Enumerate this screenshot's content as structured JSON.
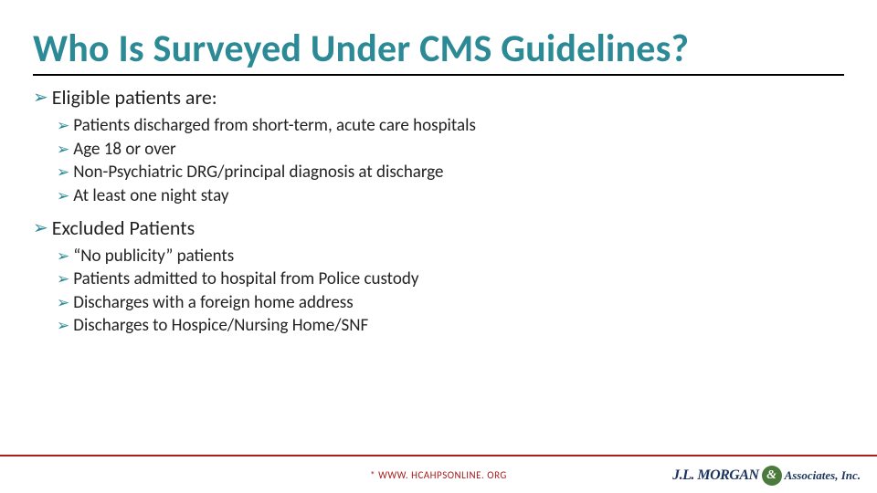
{
  "title": "Who Is Surveyed Under CMS Guidelines?",
  "sections": [
    {
      "heading": "Eligible patients are:",
      "items": [
        "Patients discharged from short-term, acute care hospitals",
        "Age 18 or over",
        "Non-Psychiatric DRG/principal diagnosis at discharge",
        "At least one night stay"
      ]
    },
    {
      "heading": "Excluded Patients",
      "items": [
        "“No publicity” patients",
        "Patients admitted to hospital from Police custody",
        "Discharges with a foreign home address",
        "Discharges to Hospice/Nursing Home/SNF"
      ]
    }
  ],
  "footnote": "* WWW. HCAHPSONLINE. ORG",
  "logo": {
    "jl": "J.L. MORGAN",
    "amp": "&",
    "assoc": "Associates, Inc."
  },
  "colors": {
    "accent": "#2b8a95",
    "rule": "#a7201f",
    "text": "#222222",
    "logo_navy": "#1c355e",
    "logo_green": "#4a7a3c"
  }
}
